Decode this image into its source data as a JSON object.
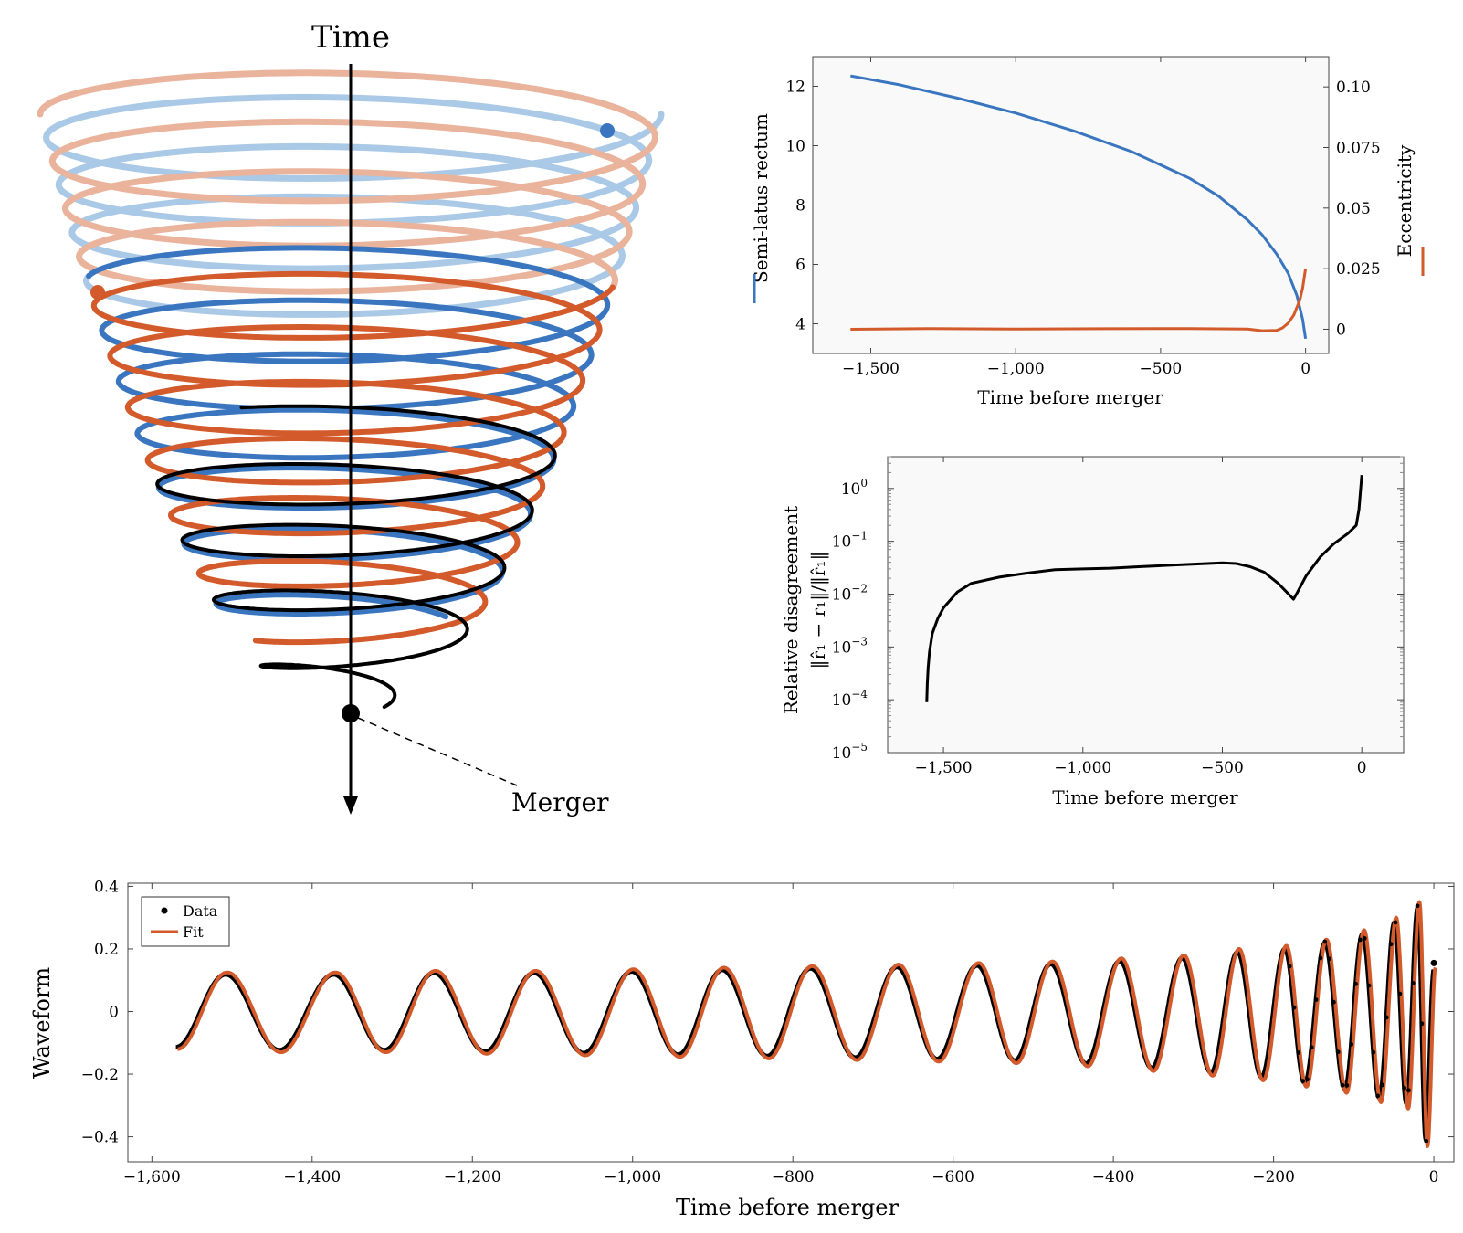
{
  "colors": {
    "blue": "#3a76bf",
    "orange": "#d25a2b",
    "black": "#000000",
    "panel_bg": "#f9f9f9",
    "light_blue": "#a9c9e6",
    "light_orange": "#eab49c"
  },
  "spiral": {
    "time_label": "Time",
    "merger_label": "Merger"
  },
  "chart_data": [
    {
      "id": "orbital-elements",
      "type": "line",
      "xlabel": "Time before merger",
      "ylabel_left": "Semi-latus rectum",
      "ylabel_right": "Eccentricity",
      "xlim": [
        -1700,
        80
      ],
      "ylim_left": [
        3,
        13
      ],
      "ylim_right": [
        -0.01,
        0.1125
      ],
      "xticks": [
        -1500,
        -1000,
        -500,
        0
      ],
      "xtick_labels": [
        "−1,500",
        "−1,000",
        "−500",
        "0"
      ],
      "yticks_left": [
        4,
        6,
        8,
        10,
        12
      ],
      "ytick_labels_left": [
        "4",
        "6",
        "8",
        "10",
        "12"
      ],
      "yticks_right": [
        0,
        0.025,
        0.05,
        0.075,
        0.1
      ],
      "ytick_labels_right": [
        "0",
        "0.025",
        "0.05",
        "0.075",
        "0.10"
      ],
      "series": [
        {
          "axis": "left",
          "color": "#3a76bf",
          "x": [
            -1570,
            -1400,
            -1200,
            -1000,
            -800,
            -600,
            -400,
            -300,
            -200,
            -150,
            -100,
            -60,
            -30,
            -10,
            0
          ],
          "y": [
            12.35,
            12.05,
            11.6,
            11.1,
            10.5,
            9.8,
            8.9,
            8.3,
            7.5,
            7.0,
            6.35,
            5.7,
            4.95,
            4.15,
            3.5
          ]
        },
        {
          "axis": "right",
          "color": "#d25a2b",
          "x": [
            -1570,
            -1300,
            -1000,
            -700,
            -400,
            -200,
            -150,
            -100,
            -80,
            -60,
            -40,
            -20,
            -10,
            0
          ],
          "y": [
            0.0,
            0.0003,
            0.0001,
            0.0002,
            0.0003,
            0.0001,
            -0.0006,
            -0.0005,
            0.0005,
            0.0025,
            0.006,
            0.012,
            0.017,
            0.025
          ]
        }
      ]
    },
    {
      "id": "relative-disagreement",
      "type": "line",
      "log_y": true,
      "xlabel": "Time before merger",
      "ylabel": "Relative disagreement",
      "ylabel_formula": "‖r̂₁ − r₁‖/‖r̂₁‖",
      "xlim": [
        -1700,
        150
      ],
      "ylim": [
        1e-05,
        4
      ],
      "xticks": [
        -1500,
        -1000,
        -500,
        0
      ],
      "xtick_labels": [
        "−1,500",
        "−1,000",
        "−500",
        "0"
      ],
      "yticks": [
        -5,
        -4,
        -3,
        -2,
        -1,
        0
      ],
      "ytick_exponents": [
        "−5",
        "−4",
        "−3",
        "−2",
        "−1",
        "0"
      ],
      "series": [
        {
          "color": "#000000",
          "x": [
            -1560,
            -1558,
            -1555,
            -1550,
            -1540,
            -1520,
            -1500,
            -1450,
            -1400,
            -1300,
            -1200,
            -1100,
            -1000,
            -900,
            -800,
            -700,
            -600,
            -500,
            -450,
            -400,
            -350,
            -300,
            -270,
            -245,
            -230,
            -200,
            -150,
            -100,
            -50,
            -20,
            -10,
            0
          ],
          "y": [
            9e-05,
            0.0002,
            0.0004,
            0.0008,
            0.0018,
            0.0035,
            0.0055,
            0.011,
            0.016,
            0.021,
            0.025,
            0.029,
            0.03,
            0.031,
            0.033,
            0.035,
            0.037,
            0.039,
            0.038,
            0.033,
            0.026,
            0.016,
            0.011,
            0.008,
            0.011,
            0.022,
            0.05,
            0.09,
            0.14,
            0.2,
            0.4,
            1.8
          ]
        }
      ]
    },
    {
      "id": "waveform-fit",
      "type": "line",
      "xlabel": "Time before merger",
      "ylabel": "Waveform",
      "xlim": [
        -1630,
        25
      ],
      "ylim": [
        -0.48,
        0.41
      ],
      "xticks": [
        -1600,
        -1400,
        -1200,
        -1000,
        -800,
        -600,
        -400,
        -200,
        0
      ],
      "xtick_labels": [
        "−1,600",
        "−1,400",
        "−1,200",
        "−1,000",
        "−800",
        "−600",
        "−400",
        "−200",
        "0"
      ],
      "yticks": [
        -0.4,
        -0.2,
        0,
        0.2,
        0.4
      ],
      "ytick_labels": [
        "−0.4",
        "−0.2",
        "0",
        "0.2",
        "0.4"
      ],
      "legend": [
        {
          "label": "Data",
          "marker": "dot"
        },
        {
          "label": "Fit",
          "marker": "line"
        }
      ],
      "legend_position": "top-left",
      "peaks": {
        "x": [
          -1570,
          -1508,
          -1441,
          -1373,
          -1310,
          -1248,
          -1184,
          -1123,
          -1061,
          -1001,
          -943,
          -888,
          -832,
          -778,
          -722,
          -670,
          -620,
          -570,
          -523,
          -478,
          -434,
          -392,
          -352,
          -314,
          -278,
          -245,
          -215,
          -186,
          -161,
          -136,
          -111,
          -89,
          -68,
          -49,
          -34,
          -20,
          -10,
          0
        ],
        "y": [
          -0.12,
          0.125,
          -0.13,
          0.125,
          -0.13,
          0.13,
          -0.135,
          0.13,
          -0.14,
          0.135,
          -0.145,
          0.14,
          -0.15,
          0.145,
          -0.155,
          0.15,
          -0.16,
          0.155,
          -0.165,
          0.16,
          -0.175,
          0.17,
          -0.19,
          0.18,
          -0.205,
          0.2,
          -0.22,
          0.21,
          -0.24,
          0.23,
          -0.26,
          0.26,
          -0.29,
          0.3,
          -0.31,
          0.35,
          -0.43,
          0.14
        ]
      },
      "data_end_point": {
        "x": 0,
        "y": 0.155
      }
    }
  ]
}
